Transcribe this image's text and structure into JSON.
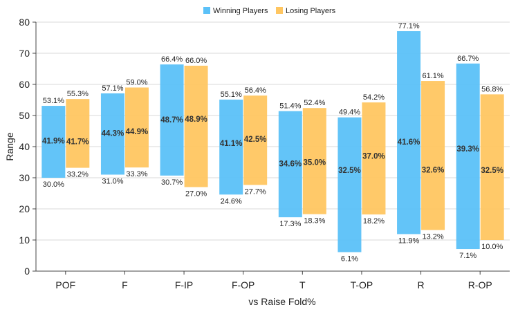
{
  "chart_data": {
    "type": "bar",
    "subtype": "floating-range-bar",
    "title": "",
    "xlabel": "vs Raise Fold%",
    "ylabel": "Range",
    "ylim": [
      0,
      80
    ],
    "yticks": [
      0,
      10,
      20,
      30,
      40,
      50,
      60,
      70,
      80
    ],
    "grid": true,
    "legend_position": "top-center",
    "categories": [
      "POF",
      "F",
      "F-IP",
      "F-OP",
      "T",
      "T-OP",
      "R",
      "R-OP"
    ],
    "series": [
      {
        "name": "Winning Players",
        "color": "#5BC1F8",
        "low": [
          30.0,
          31.0,
          30.7,
          24.6,
          17.3,
          6.1,
          11.9,
          7.1
        ],
        "high": [
          53.1,
          57.1,
          66.4,
          55.1,
          51.4,
          49.4,
          77.1,
          66.7
        ],
        "mid": [
          41.9,
          44.3,
          48.7,
          41.1,
          34.6,
          32.5,
          41.6,
          39.3
        ],
        "low_labels": [
          "30.0%",
          "31.0%",
          "30.7%",
          "24.6%",
          "17.3%",
          "6.1%",
          "11.9%",
          "7.1%"
        ],
        "high_labels": [
          "53.1%",
          "57.1%",
          "66.4%",
          "55.1%",
          "51.4%",
          "49.4%",
          "77.1%",
          "66.7%"
        ],
        "mid_labels": [
          "41.9%",
          "44.3%",
          "48.7%",
          "41.1%",
          "34.6%",
          "32.5%",
          "41.6%",
          "39.3%"
        ]
      },
      {
        "name": "Losing Players",
        "color": "#FFC661",
        "low": [
          33.2,
          33.3,
          27.0,
          27.7,
          18.3,
          18.2,
          13.2,
          10.0
        ],
        "high": [
          55.3,
          59.0,
          66.0,
          56.4,
          52.4,
          54.2,
          61.1,
          56.8
        ],
        "mid": [
          41.7,
          44.9,
          48.9,
          42.5,
          35.0,
          37.0,
          32.6,
          32.5
        ],
        "low_labels": [
          "33.2%",
          "33.3%",
          "27.0%",
          "27.7%",
          "18.3%",
          "18.2%",
          "13.2%",
          "10.0%"
        ],
        "high_labels": [
          "55.3%",
          "59.0%",
          "66.0%",
          "56.4%",
          "52.4%",
          "54.2%",
          "61.1%",
          "56.8%"
        ],
        "mid_labels": [
          "41.7%",
          "44.9%",
          "48.9%",
          "42.5%",
          "35.0%",
          "37.0%",
          "32.6%",
          "32.5%"
        ]
      }
    ]
  }
}
